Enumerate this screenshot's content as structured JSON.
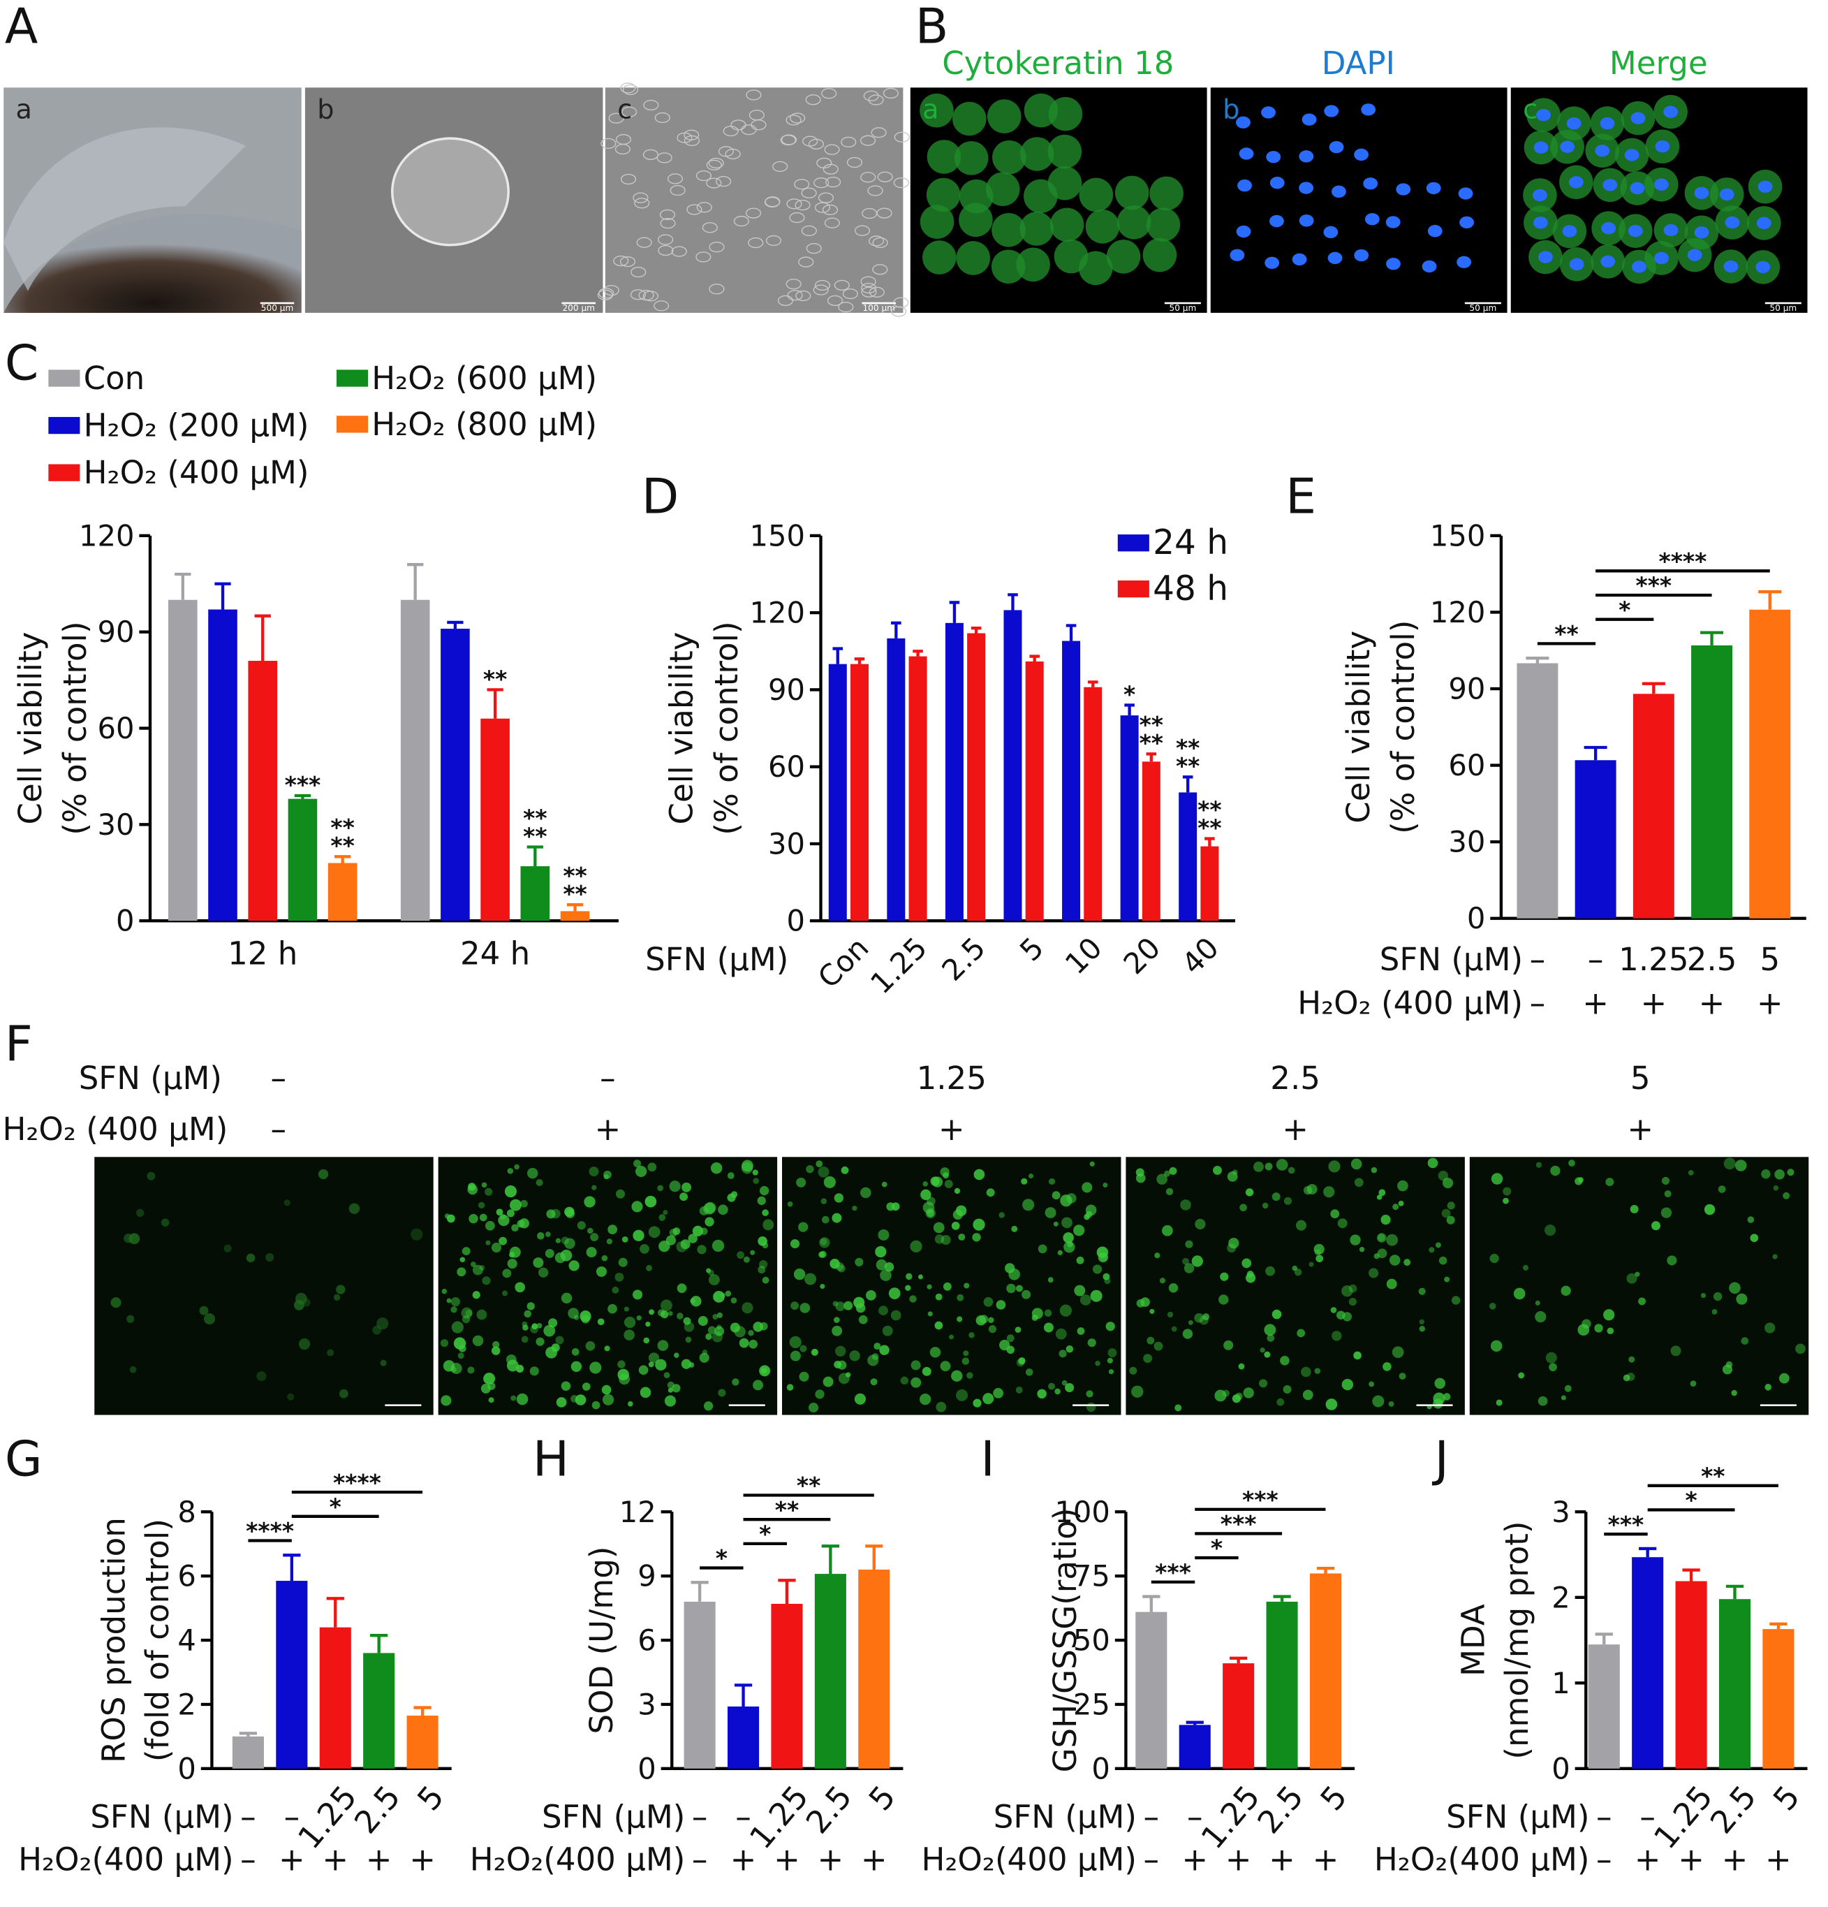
{
  "figure": {
    "panel_A": {
      "letter": "A",
      "images": [
        {
          "label": "a",
          "scale_bar": "500 µm"
        },
        {
          "label": "b",
          "scale_bar": "200 µm"
        },
        {
          "label": "c",
          "scale_bar": "100 µm"
        }
      ]
    },
    "panel_B": {
      "letter": "B",
      "images": [
        {
          "label": "a",
          "title": "Cytokeratin 18",
          "scale_bar": "50 µm"
        },
        {
          "label": "b",
          "title": "DAPI",
          "scale_bar": "50 µm"
        },
        {
          "label": "c",
          "title": "Merge",
          "scale_bar": "50 µm"
        }
      ]
    },
    "panel_F": {
      "letter": "F",
      "rows": [
        {
          "label": "SFN (µM)",
          "values": [
            "–",
            "–",
            "1.25",
            "2.5",
            "5"
          ]
        },
        {
          "label": "H₂O₂ (400 µM)",
          "values": [
            "–",
            "+",
            "+",
            "+",
            "+"
          ]
        }
      ]
    }
  },
  "chart_data": [
    {
      "panel": "C",
      "type": "bar",
      "ylabel": [
        "Cell viability",
        "(% of control)"
      ],
      "categories": [
        "12 h",
        "24 h"
      ],
      "ylim": [
        0,
        120
      ],
      "yticks": [
        0,
        30,
        60,
        90,
        120
      ],
      "legend": "top",
      "series": [
        {
          "name": "Con",
          "color": "#a3a3a7",
          "values": [
            100,
            100
          ],
          "errors": [
            8,
            11
          ]
        },
        {
          "name": "H₂O₂ (200 µM)",
          "color": "#0b0bcf",
          "values": [
            97,
            91
          ],
          "errors": [
            8,
            2
          ]
        },
        {
          "name": "H₂O₂ (400 µM)",
          "color": "#f01414",
          "values": [
            81,
            63
          ],
          "errors": [
            14,
            9
          ],
          "stars": [
            null,
            [
              "**"
            ]
          ]
        },
        {
          "name": "H₂O₂ (600 µM)",
          "color": "#0f8c1c",
          "values": [
            38,
            17
          ],
          "errors": [
            1,
            6
          ],
          "stars": [
            [
              "***"
            ],
            [
              "**",
              "**"
            ]
          ]
        },
        {
          "name": "H₂O₂ (800 µM)",
          "color": "#ff7212",
          "values": [
            18,
            3
          ],
          "errors": [
            2,
            2
          ],
          "stars": [
            [
              "**",
              "**"
            ],
            [
              "**",
              "**"
            ]
          ]
        }
      ]
    },
    {
      "panel": "D",
      "type": "bar",
      "ylabel": [
        "Cell viability",
        "(% of control)"
      ],
      "xlabel": "SFN (µM)",
      "categories": [
        "Con",
        "1.25",
        "2.5",
        "5",
        "10",
        "20",
        "40"
      ],
      "ylim": [
        0,
        150
      ],
      "yticks": [
        0,
        30,
        60,
        90,
        120,
        150
      ],
      "legend": "upper right",
      "series": [
        {
          "name": "24 h",
          "color": "#0b0bcf",
          "values": [
            100,
            110,
            116,
            121,
            109,
            80,
            50
          ],
          "errors": [
            6,
            6,
            8,
            6,
            6,
            4,
            6
          ],
          "stars": [
            null,
            null,
            null,
            null,
            null,
            [
              "*"
            ],
            [
              "**",
              "**"
            ]
          ]
        },
        {
          "name": "48 h",
          "color": "#f01414",
          "values": [
            100,
            103,
            112,
            101,
            91,
            62,
            29
          ],
          "errors": [
            2,
            2,
            2,
            2,
            2,
            3,
            3
          ],
          "stars": [
            null,
            null,
            null,
            null,
            null,
            [
              "**",
              "**"
            ],
            [
              "**",
              "**"
            ]
          ]
        }
      ]
    },
    {
      "panel": "E",
      "type": "bar",
      "ylabel": [
        "Cell viability",
        "(% of control)"
      ],
      "ylim": [
        0,
        150
      ],
      "yticks": [
        0,
        30,
        60,
        90,
        120,
        150
      ],
      "values": [
        100,
        62,
        88,
        107,
        121
      ],
      "errors": [
        2,
        5,
        4,
        5,
        7
      ],
      "colors": [
        "#a3a3a7",
        "#0b0bcf",
        "#f01414",
        "#0f8c1c",
        "#ff7212"
      ],
      "rows": [
        {
          "label": "SFN (µM)",
          "values": [
            "–",
            "–",
            "1.25",
            "2.5",
            "5"
          ]
        },
        {
          "label": "H₂O₂ (400 µM)",
          "values": [
            "–",
            "+",
            "+",
            "+",
            "+"
          ]
        }
      ],
      "brackets": [
        {
          "from": 0,
          "to": 1,
          "label": "**"
        },
        {
          "from": 1,
          "to": 2,
          "label": "*"
        },
        {
          "from": 1,
          "to": 3,
          "label": "***"
        },
        {
          "from": 1,
          "to": 4,
          "label": "****"
        }
      ]
    },
    {
      "panel": "G",
      "type": "bar",
      "ylabel": [
        "ROS production",
        "(fold of control)"
      ],
      "ylim": [
        0,
        8
      ],
      "yticks": [
        0,
        2,
        4,
        6,
        8
      ],
      "values": [
        1,
        5.85,
        4.4,
        3.6,
        1.65
      ],
      "errors": [
        0.1,
        0.8,
        0.9,
        0.55,
        0.25
      ],
      "colors": [
        "#a3a3a7",
        "#0b0bcf",
        "#f01414",
        "#0f8c1c",
        "#ff7212"
      ],
      "rows": [
        {
          "label": "SFN (µM)",
          "values": [
            "–",
            "–",
            "1.25",
            "2.5",
            "5"
          ]
        },
        {
          "label": "H₂O₂(400 µM)",
          "values": [
            "–",
            "+",
            "+",
            "+",
            "+"
          ]
        }
      ],
      "brackets": [
        {
          "from": 0,
          "to": 1,
          "label": "****"
        },
        {
          "from": 1,
          "to": 3,
          "label": "*"
        },
        {
          "from": 1,
          "to": 4,
          "label": "****"
        }
      ]
    },
    {
      "panel": "H",
      "type": "bar",
      "ylabel": [
        "SOD (U/mg)"
      ],
      "ylim": [
        0,
        12
      ],
      "yticks": [
        0,
        3,
        6,
        9,
        12
      ],
      "values": [
        7.8,
        2.9,
        7.7,
        9.1,
        9.3
      ],
      "errors": [
        0.9,
        1.0,
        1.1,
        1.3,
        1.1
      ],
      "colors": [
        "#a3a3a7",
        "#0b0bcf",
        "#f01414",
        "#0f8c1c",
        "#ff7212"
      ],
      "rows": [
        {
          "label": "SFN (µM)",
          "values": [
            "–",
            "–",
            "1.25",
            "2.5",
            "5"
          ]
        },
        {
          "label": "H₂O₂(400 µM)",
          "values": [
            "–",
            "+",
            "+",
            "+",
            "+"
          ]
        }
      ],
      "brackets": [
        {
          "from": 0,
          "to": 1,
          "label": "*"
        },
        {
          "from": 1,
          "to": 2,
          "label": "*"
        },
        {
          "from": 1,
          "to": 3,
          "label": "**"
        },
        {
          "from": 1,
          "to": 4,
          "label": "**"
        }
      ]
    },
    {
      "panel": "I",
      "type": "bar",
      "ylabel": [
        "GSH/GSSG(ratio)"
      ],
      "ylim": [
        0,
        100
      ],
      "yticks": [
        0,
        25,
        50,
        75,
        100
      ],
      "values": [
        61,
        17,
        41,
        65,
        76
      ],
      "errors": [
        6,
        1,
        2,
        2,
        2
      ],
      "colors": [
        "#a3a3a7",
        "#0b0bcf",
        "#f01414",
        "#0f8c1c",
        "#ff7212"
      ],
      "rows": [
        {
          "label": "SFN (µM)",
          "values": [
            "–",
            "–",
            "1.25",
            "2.5",
            "5"
          ]
        },
        {
          "label": "H₂O₂(400 µM)",
          "values": [
            "–",
            "+",
            "+",
            "+",
            "+"
          ]
        }
      ],
      "brackets": [
        {
          "from": 0,
          "to": 1,
          "label": "***"
        },
        {
          "from": 1,
          "to": 2,
          "label": "*"
        },
        {
          "from": 1,
          "to": 3,
          "label": "***"
        },
        {
          "from": 1,
          "to": 4,
          "label": "***"
        }
      ]
    },
    {
      "panel": "J",
      "type": "bar",
      "ylabel": [
        "MDA",
        "(nmol/mg prot)"
      ],
      "ylim": [
        0,
        3
      ],
      "yticks": [
        0,
        1,
        2,
        3
      ],
      "values": [
        1.45,
        2.47,
        2.19,
        1.98,
        1.63
      ],
      "errors": [
        0.12,
        0.1,
        0.13,
        0.15,
        0.06
      ],
      "colors": [
        "#a3a3a7",
        "#0b0bcf",
        "#f01414",
        "#0f8c1c",
        "#ff7212"
      ],
      "rows": [
        {
          "label": "SFN (µM)",
          "values": [
            "–",
            "–",
            "1.25",
            "2.5",
            "5"
          ]
        },
        {
          "label": "H₂O₂(400 µM)",
          "values": [
            "–",
            "+",
            "+",
            "+",
            "+"
          ]
        }
      ],
      "brackets": [
        {
          "from": 0,
          "to": 1,
          "label": "***"
        },
        {
          "from": 1,
          "to": 3,
          "label": "*"
        },
        {
          "from": 1,
          "to": 4,
          "label": "**"
        }
      ]
    }
  ]
}
